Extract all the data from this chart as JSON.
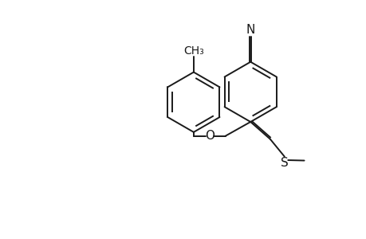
{
  "bg_color": "#ffffff",
  "line_color": "#1a1a1a",
  "line_width": 1.4,
  "font_size": 10,
  "figsize": [
    4.6,
    3.0
  ],
  "dpi": 100,
  "xlim": [
    0,
    46
  ],
  "ylim": [
    0,
    30
  ]
}
